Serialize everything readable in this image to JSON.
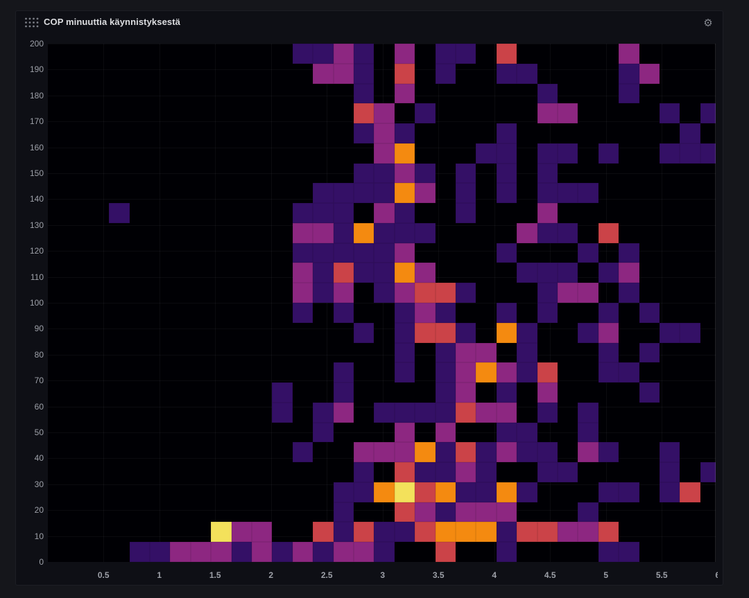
{
  "panel": {
    "title": "COP minuuttia käynnistyksestä",
    "icons": {
      "drag_handle": "grip-dots-icon",
      "settings": "gear-icon"
    }
  },
  "chart_data": {
    "type": "heatmap",
    "title": "COP minuuttia käynnistyksestä",
    "x_ticks": [
      0.5,
      1,
      1.5,
      2,
      2.5,
      3,
      3.5,
      4,
      4.5,
      5,
      5.5,
      6
    ],
    "y_ticks": [
      0,
      10,
      20,
      30,
      40,
      50,
      60,
      70,
      80,
      90,
      100,
      110,
      120,
      130,
      140,
      150,
      160,
      170,
      180,
      190,
      200
    ],
    "x_range": [
      0,
      6
    ],
    "y_range": [
      0,
      200
    ],
    "grid": {
      "columns": 33,
      "rows": 26,
      "x_bucket_size": 0.182,
      "y_bucket_size": 7.69
    },
    "legend_position": "none",
    "grid_lines": true,
    "plot_background": "#000004",
    "palette": {
      "P": {
        "name": "low-purple",
        "color": "#341066"
      },
      "M": {
        "name": "mid-magenta",
        "color": "#8d2781"
      },
      "R": {
        "name": "high-red",
        "color": "#cb4348"
      },
      "O": {
        "name": "higher-orange",
        "color": "#f48a10"
      },
      "Y": {
        "name": "max-yellow",
        "color": "#f3e15b"
      }
    },
    "cells": [
      [
        4,
        0,
        "P"
      ],
      [
        5,
        0,
        "P"
      ],
      [
        6,
        0,
        "M"
      ],
      [
        7,
        0,
        "M"
      ],
      [
        8,
        0,
        "M"
      ],
      [
        9,
        0,
        "P"
      ],
      [
        10,
        0,
        "M"
      ],
      [
        11,
        0,
        "P"
      ],
      [
        12,
        0,
        "M"
      ],
      [
        13,
        0,
        "P"
      ],
      [
        14,
        0,
        "M"
      ],
      [
        15,
        0,
        "M"
      ],
      [
        16,
        0,
        "P"
      ],
      [
        19,
        0,
        "R"
      ],
      [
        22,
        0,
        "P"
      ],
      [
        27,
        0,
        "P"
      ],
      [
        28,
        0,
        "P"
      ],
      [
        8,
        1,
        "Y"
      ],
      [
        9,
        1,
        "M"
      ],
      [
        10,
        1,
        "M"
      ],
      [
        13,
        1,
        "R"
      ],
      [
        14,
        1,
        "P"
      ],
      [
        15,
        1,
        "R"
      ],
      [
        16,
        1,
        "P"
      ],
      [
        17,
        1,
        "P"
      ],
      [
        18,
        1,
        "R"
      ],
      [
        19,
        1,
        "O"
      ],
      [
        20,
        1,
        "O"
      ],
      [
        21,
        1,
        "O"
      ],
      [
        22,
        1,
        "P"
      ],
      [
        23,
        1,
        "R"
      ],
      [
        24,
        1,
        "R"
      ],
      [
        25,
        1,
        "M"
      ],
      [
        26,
        1,
        "M"
      ],
      [
        27,
        1,
        "R"
      ],
      [
        14,
        2,
        "P"
      ],
      [
        17,
        2,
        "R"
      ],
      [
        18,
        2,
        "M"
      ],
      [
        19,
        2,
        "P"
      ],
      [
        20,
        2,
        "M"
      ],
      [
        21,
        2,
        "M"
      ],
      [
        22,
        2,
        "M"
      ],
      [
        26,
        2,
        "P"
      ],
      [
        14,
        3,
        "P"
      ],
      [
        15,
        3,
        "P"
      ],
      [
        16,
        3,
        "O"
      ],
      [
        17,
        3,
        "Y"
      ],
      [
        18,
        3,
        "R"
      ],
      [
        19,
        3,
        "O"
      ],
      [
        20,
        3,
        "P"
      ],
      [
        21,
        3,
        "P"
      ],
      [
        22,
        3,
        "O"
      ],
      [
        23,
        3,
        "P"
      ],
      [
        27,
        3,
        "P"
      ],
      [
        28,
        3,
        "P"
      ],
      [
        30,
        3,
        "P"
      ],
      [
        31,
        3,
        "R"
      ],
      [
        15,
        4,
        "P"
      ],
      [
        17,
        4,
        "R"
      ],
      [
        18,
        4,
        "P"
      ],
      [
        19,
        4,
        "P"
      ],
      [
        20,
        4,
        "M"
      ],
      [
        21,
        4,
        "P"
      ],
      [
        24,
        4,
        "P"
      ],
      [
        25,
        4,
        "P"
      ],
      [
        30,
        4,
        "P"
      ],
      [
        32,
        4,
        "P"
      ],
      [
        12,
        5,
        "P"
      ],
      [
        15,
        5,
        "M"
      ],
      [
        16,
        5,
        "M"
      ],
      [
        17,
        5,
        "M"
      ],
      [
        18,
        5,
        "O"
      ],
      [
        19,
        5,
        "P"
      ],
      [
        20,
        5,
        "R"
      ],
      [
        21,
        5,
        "P"
      ],
      [
        22,
        5,
        "M"
      ],
      [
        23,
        5,
        "P"
      ],
      [
        24,
        5,
        "P"
      ],
      [
        26,
        5,
        "M"
      ],
      [
        27,
        5,
        "P"
      ],
      [
        30,
        5,
        "P"
      ],
      [
        13,
        6,
        "P"
      ],
      [
        17,
        6,
        "M"
      ],
      [
        19,
        6,
        "M"
      ],
      [
        22,
        6,
        "P"
      ],
      [
        23,
        6,
        "P"
      ],
      [
        26,
        6,
        "P"
      ],
      [
        11,
        7,
        "P"
      ],
      [
        13,
        7,
        "P"
      ],
      [
        14,
        7,
        "M"
      ],
      [
        16,
        7,
        "P"
      ],
      [
        17,
        7,
        "P"
      ],
      [
        18,
        7,
        "P"
      ],
      [
        19,
        7,
        "P"
      ],
      [
        20,
        7,
        "R"
      ],
      [
        21,
        7,
        "M"
      ],
      [
        22,
        7,
        "M"
      ],
      [
        24,
        7,
        "P"
      ],
      [
        26,
        7,
        "P"
      ],
      [
        11,
        8,
        "P"
      ],
      [
        14,
        8,
        "P"
      ],
      [
        19,
        8,
        "P"
      ],
      [
        20,
        8,
        "M"
      ],
      [
        22,
        8,
        "P"
      ],
      [
        24,
        8,
        "M"
      ],
      [
        29,
        8,
        "P"
      ],
      [
        14,
        9,
        "P"
      ],
      [
        17,
        9,
        "P"
      ],
      [
        19,
        9,
        "P"
      ],
      [
        20,
        9,
        "M"
      ],
      [
        21,
        9,
        "O"
      ],
      [
        22,
        9,
        "M"
      ],
      [
        23,
        9,
        "P"
      ],
      [
        24,
        9,
        "R"
      ],
      [
        27,
        9,
        "P"
      ],
      [
        28,
        9,
        "P"
      ],
      [
        17,
        10,
        "P"
      ],
      [
        19,
        10,
        "P"
      ],
      [
        20,
        10,
        "M"
      ],
      [
        21,
        10,
        "M"
      ],
      [
        23,
        10,
        "P"
      ],
      [
        27,
        10,
        "P"
      ],
      [
        29,
        10,
        "P"
      ],
      [
        15,
        11,
        "P"
      ],
      [
        17,
        11,
        "P"
      ],
      [
        18,
        11,
        "R"
      ],
      [
        19,
        11,
        "R"
      ],
      [
        20,
        11,
        "P"
      ],
      [
        22,
        11,
        "O"
      ],
      [
        23,
        11,
        "P"
      ],
      [
        26,
        11,
        "P"
      ],
      [
        27,
        11,
        "M"
      ],
      [
        30,
        11,
        "P"
      ],
      [
        31,
        11,
        "P"
      ],
      [
        12,
        12,
        "P"
      ],
      [
        14,
        12,
        "P"
      ],
      [
        17,
        12,
        "P"
      ],
      [
        18,
        12,
        "M"
      ],
      [
        19,
        12,
        "P"
      ],
      [
        22,
        12,
        "P"
      ],
      [
        24,
        12,
        "P"
      ],
      [
        27,
        12,
        "P"
      ],
      [
        29,
        12,
        "P"
      ],
      [
        12,
        13,
        "M"
      ],
      [
        13,
        13,
        "P"
      ],
      [
        14,
        13,
        "M"
      ],
      [
        16,
        13,
        "P"
      ],
      [
        17,
        13,
        "M"
      ],
      [
        18,
        13,
        "R"
      ],
      [
        19,
        13,
        "R"
      ],
      [
        20,
        13,
        "P"
      ],
      [
        24,
        13,
        "P"
      ],
      [
        25,
        13,
        "M"
      ],
      [
        26,
        13,
        "M"
      ],
      [
        28,
        13,
        "P"
      ],
      [
        12,
        14,
        "M"
      ],
      [
        13,
        14,
        "P"
      ],
      [
        14,
        14,
        "R"
      ],
      [
        15,
        14,
        "P"
      ],
      [
        16,
        14,
        "P"
      ],
      [
        17,
        14,
        "O"
      ],
      [
        18,
        14,
        "M"
      ],
      [
        23,
        14,
        "P"
      ],
      [
        24,
        14,
        "P"
      ],
      [
        25,
        14,
        "P"
      ],
      [
        27,
        14,
        "P"
      ],
      [
        28,
        14,
        "M"
      ],
      [
        12,
        15,
        "P"
      ],
      [
        13,
        15,
        "P"
      ],
      [
        14,
        15,
        "P"
      ],
      [
        15,
        15,
        "P"
      ],
      [
        16,
        15,
        "P"
      ],
      [
        17,
        15,
        "M"
      ],
      [
        22,
        15,
        "P"
      ],
      [
        26,
        15,
        "P"
      ],
      [
        28,
        15,
        "P"
      ],
      [
        12,
        16,
        "M"
      ],
      [
        13,
        16,
        "M"
      ],
      [
        14,
        16,
        "P"
      ],
      [
        15,
        16,
        "O"
      ],
      [
        16,
        16,
        "P"
      ],
      [
        17,
        16,
        "P"
      ],
      [
        18,
        16,
        "P"
      ],
      [
        23,
        16,
        "M"
      ],
      [
        24,
        16,
        "P"
      ],
      [
        25,
        16,
        "P"
      ],
      [
        27,
        16,
        "R"
      ],
      [
        3,
        17,
        "P"
      ],
      [
        12,
        17,
        "P"
      ],
      [
        13,
        17,
        "P"
      ],
      [
        14,
        17,
        "P"
      ],
      [
        16,
        17,
        "M"
      ],
      [
        17,
        17,
        "P"
      ],
      [
        20,
        17,
        "P"
      ],
      [
        24,
        17,
        "M"
      ],
      [
        13,
        18,
        "P"
      ],
      [
        14,
        18,
        "P"
      ],
      [
        15,
        18,
        "P"
      ],
      [
        16,
        18,
        "P"
      ],
      [
        17,
        18,
        "O"
      ],
      [
        18,
        18,
        "M"
      ],
      [
        20,
        18,
        "P"
      ],
      [
        22,
        18,
        "P"
      ],
      [
        24,
        18,
        "P"
      ],
      [
        25,
        18,
        "P"
      ],
      [
        26,
        18,
        "P"
      ],
      [
        15,
        19,
        "P"
      ],
      [
        16,
        19,
        "P"
      ],
      [
        17,
        19,
        "M"
      ],
      [
        18,
        19,
        "P"
      ],
      [
        20,
        19,
        "P"
      ],
      [
        22,
        19,
        "P"
      ],
      [
        24,
        19,
        "P"
      ],
      [
        16,
        20,
        "M"
      ],
      [
        17,
        20,
        "O"
      ],
      [
        21,
        20,
        "P"
      ],
      [
        22,
        20,
        "P"
      ],
      [
        24,
        20,
        "P"
      ],
      [
        25,
        20,
        "P"
      ],
      [
        27,
        20,
        "P"
      ],
      [
        30,
        20,
        "P"
      ],
      [
        31,
        20,
        "P"
      ],
      [
        32,
        20,
        "P"
      ],
      [
        15,
        21,
        "P"
      ],
      [
        16,
        21,
        "M"
      ],
      [
        17,
        21,
        "P"
      ],
      [
        22,
        21,
        "P"
      ],
      [
        31,
        21,
        "P"
      ],
      [
        15,
        22,
        "R"
      ],
      [
        16,
        22,
        "M"
      ],
      [
        18,
        22,
        "P"
      ],
      [
        24,
        22,
        "M"
      ],
      [
        25,
        22,
        "M"
      ],
      [
        30,
        22,
        "P"
      ],
      [
        32,
        22,
        "P"
      ],
      [
        15,
        23,
        "P"
      ],
      [
        17,
        23,
        "M"
      ],
      [
        24,
        23,
        "P"
      ],
      [
        28,
        23,
        "P"
      ],
      [
        13,
        24,
        "M"
      ],
      [
        14,
        24,
        "M"
      ],
      [
        15,
        24,
        "P"
      ],
      [
        17,
        24,
        "R"
      ],
      [
        19,
        24,
        "P"
      ],
      [
        22,
        24,
        "P"
      ],
      [
        23,
        24,
        "P"
      ],
      [
        28,
        24,
        "P"
      ],
      [
        29,
        24,
        "M"
      ],
      [
        12,
        25,
        "P"
      ],
      [
        13,
        25,
        "P"
      ],
      [
        14,
        25,
        "M"
      ],
      [
        15,
        25,
        "P"
      ],
      [
        17,
        25,
        "M"
      ],
      [
        19,
        25,
        "P"
      ],
      [
        20,
        25,
        "P"
      ],
      [
        22,
        25,
        "R"
      ],
      [
        28,
        25,
        "M"
      ]
    ]
  }
}
